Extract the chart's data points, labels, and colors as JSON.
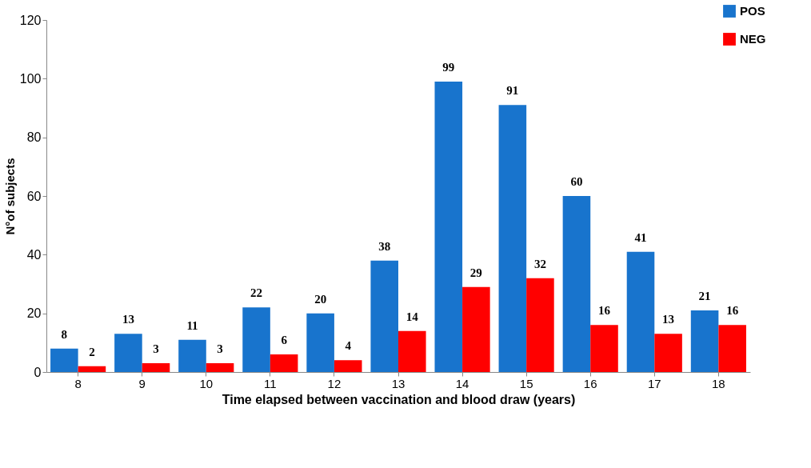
{
  "chart_data": {
    "type": "bar",
    "xlabel": "Time elapsed between vaccination and blood draw (years)",
    "ylabel": "N°of subjects",
    "categories": [
      "8",
      "9",
      "10",
      "11",
      "12",
      "13",
      "14",
      "15",
      "16",
      "17",
      "18"
    ],
    "series": [
      {
        "name": "POS",
        "color": "#1874cd",
        "values": [
          8,
          13,
          11,
          22,
          20,
          38,
          99,
          91,
          60,
          41,
          21
        ]
      },
      {
        "name": "NEG",
        "color": "#ff0000",
        "values": [
          2,
          3,
          3,
          6,
          4,
          14,
          29,
          32,
          16,
          13,
          16
        ]
      }
    ],
    "ylim": [
      0,
      120
    ],
    "yticks": [
      0,
      20,
      40,
      60,
      80,
      100,
      120
    ],
    "grid": false,
    "legend": "top right",
    "data_labels": true
  }
}
